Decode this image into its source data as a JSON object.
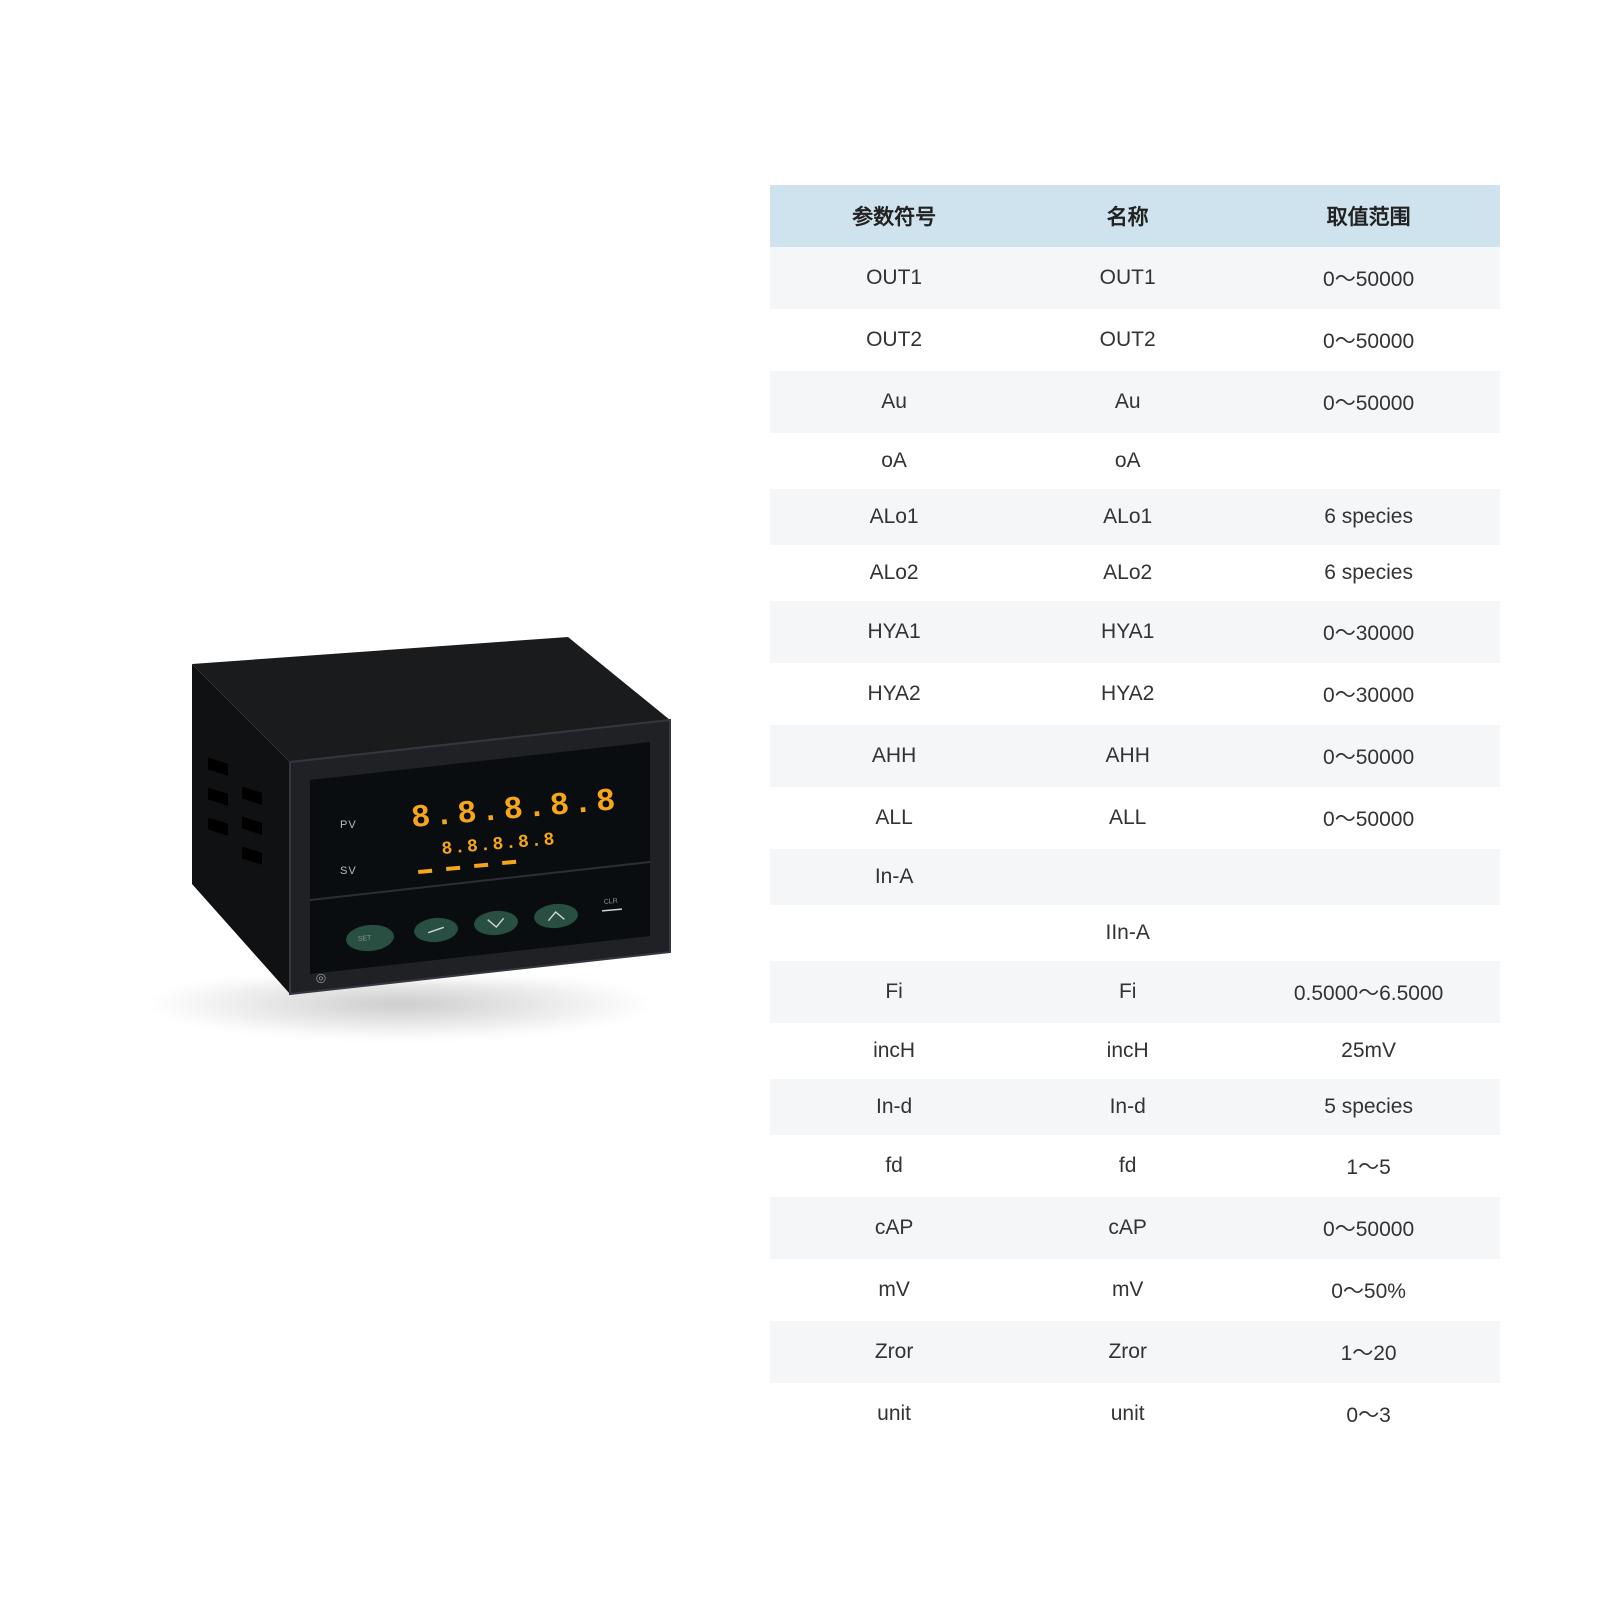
{
  "device": {
    "pv_label": "PV",
    "sv_label": "SV",
    "pv_digits": "8.8.8.8.8",
    "sv_digits": "8.8.8.8.8",
    "buttons": [
      "SET",
      "shift",
      "down",
      "up",
      "CLR"
    ],
    "indicator_leds": [
      "AL1",
      "AL2",
      "AL3",
      "AL4"
    ]
  },
  "table": {
    "header_bg": "#cfe3ee",
    "row_odd_bg": "#f4f6f7",
    "row_even_bg": "#ffffff",
    "text_color": "#333333",
    "font_size_pt": 16,
    "columns": [
      "参数符号",
      "名称",
      "取值范围"
    ],
    "rows": [
      [
        "OUT1",
        "OUT1",
        "0～50000"
      ],
      [
        "OUT2",
        "OUT2",
        "0～50000"
      ],
      [
        "Au",
        "Au",
        "0～50000"
      ],
      [
        "oA",
        "oA",
        ""
      ],
      [
        "ALo1",
        "ALo1",
        "6 species"
      ],
      [
        "ALo2",
        "ALo2",
        "6 species"
      ],
      [
        "HYA1",
        "HYA1",
        "0～30000"
      ],
      [
        "HYA2",
        "HYA2",
        "0～30000"
      ],
      [
        "AHH",
        "AHH",
        "0～50000"
      ],
      [
        "ALL",
        "ALL",
        "0～50000"
      ],
      [
        "In-A",
        "",
        ""
      ],
      [
        "",
        "IIn-A",
        ""
      ],
      [
        "Fi",
        "Fi",
        "0.5000～6.5000"
      ],
      [
        "incH",
        "incH",
        "25mV"
      ],
      [
        "In-d",
        "In-d",
        "5 species"
      ],
      [
        "fd",
        "fd",
        "1～5"
      ],
      [
        "cAP",
        "cAP",
        "0～50000"
      ],
      [
        "mV",
        "mV",
        "0～50%"
      ],
      [
        "Zror",
        "Zror",
        "1～20"
      ],
      [
        "unit",
        "unit",
        "0～3"
      ]
    ]
  }
}
